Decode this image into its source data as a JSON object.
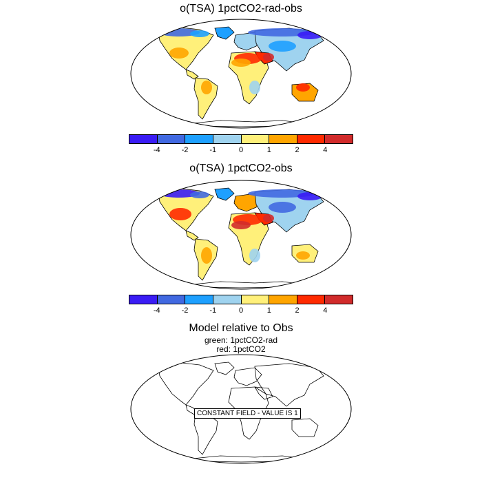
{
  "panels": [
    {
      "title": "o(TSA) 1pctCO2-rad-obs"
    },
    {
      "title": "o(TSA) 1pctCO2-obs"
    },
    {
      "title": "Model relative to Obs",
      "subtitle_lines": [
        "green: 1pctCO2-rad",
        "red: 1pctCO2"
      ],
      "message": "CONSTANT FIELD - VALUE IS 1"
    }
  ],
  "colorbar": {
    "colors": [
      "#3a1cf5",
      "#4169e1",
      "#1ea0ff",
      "#9fd3ef",
      "#fff07a",
      "#ffa500",
      "#ff2a00",
      "#d12b2b"
    ],
    "labels": [
      "-4",
      "-2",
      "-1",
      "0",
      "1",
      "2",
      "4"
    ]
  },
  "palette": {
    "ocean": "#ffffff",
    "coast": "#000000"
  }
}
